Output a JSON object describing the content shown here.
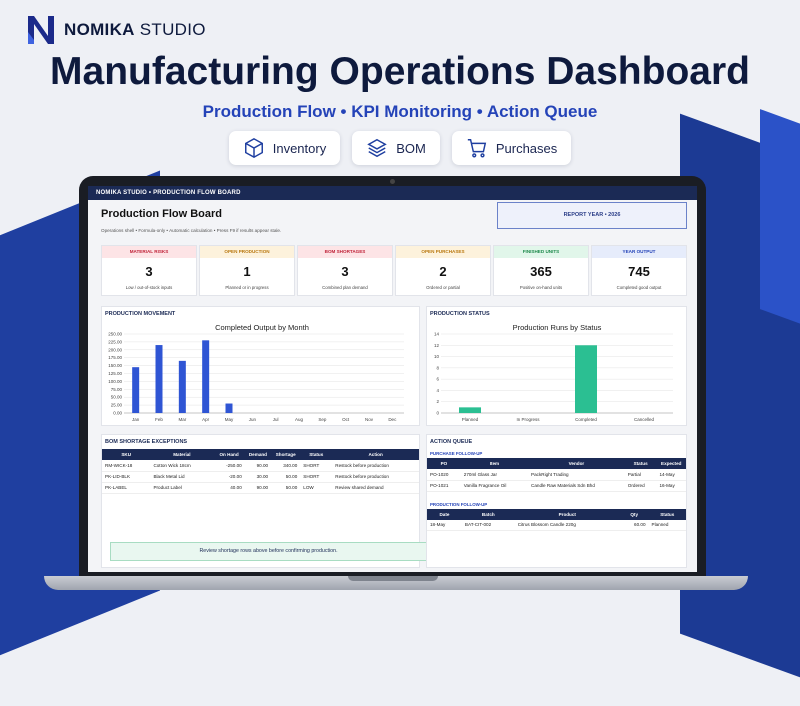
{
  "brand": {
    "name_bold": "NOMIKA",
    "name_rest": " STUDIO"
  },
  "hero": {
    "title": "Manufacturing Operations Dashboard",
    "subtitle": "Production Flow • KPI Monitoring • Action Queue"
  },
  "pills": [
    {
      "label": "Inventory",
      "icon": "box-icon"
    },
    {
      "label": "BOM",
      "icon": "layers-icon"
    },
    {
      "label": "Purchases",
      "icon": "cart-icon"
    }
  ],
  "screen": {
    "topbar": "NOMIKA STUDIO  •  PRODUCTION FLOW BOARD",
    "board_title": "Production Flow Board",
    "board_note": "Operations shell • Formula-only • Automatic calculation • Press F9 if results appear stale.",
    "report_year": "REPORT YEAR  •  2026"
  },
  "kpis": [
    {
      "header": "MATERIAL RISKS",
      "value": "3",
      "sub": "Low / out-of-stock inputs",
      "bg": "#fde4e6",
      "fg": "#c0243a"
    },
    {
      "header": "OPEN PRODUCTION",
      "value": "1",
      "sub": "Planned or in progress",
      "bg": "#fdf2dc",
      "fg": "#b9780f"
    },
    {
      "header": "BOM SHORTAGES",
      "value": "3",
      "sub": "Combined plan demand",
      "bg": "#fde4e6",
      "fg": "#c0243a"
    },
    {
      "header": "OPEN PURCHASES",
      "value": "2",
      "sub": "Ordered or partial",
      "bg": "#fdf2dc",
      "fg": "#b9780f"
    },
    {
      "header": "FINISHED UNITS",
      "value": "365",
      "sub": "Positive on-hand units",
      "bg": "#e1f6ea",
      "fg": "#1f8a4c"
    },
    {
      "header": "YEAR OUTPUT",
      "value": "745",
      "sub": "Completed good output",
      "bg": "#e6ecfb",
      "fg": "#2443b8"
    }
  ],
  "movement": {
    "panel_title": "PRODUCTION MOVEMENT",
    "chart_data": {
      "type": "bar",
      "title": "Completed Output by Month",
      "categories": [
        "Jan",
        "Feb",
        "Mar",
        "Apr",
        "May",
        "Jun",
        "Jul",
        "Aug",
        "Sep",
        "Oct",
        "Nov",
        "Dec"
      ],
      "values": [
        145,
        215,
        165,
        230,
        30,
        0,
        0,
        0,
        0,
        0,
        0,
        0
      ],
      "yticks": [
        "0.00",
        "25.00",
        "50.00",
        "75.00",
        "100.00",
        "125.00",
        "150.00",
        "175.00",
        "200.00",
        "225.00",
        "250.00"
      ],
      "ylim": [
        0,
        250
      ],
      "color": "#2f55d4"
    }
  },
  "status": {
    "panel_title": "PRODUCTION STATUS",
    "chart_data": {
      "type": "bar",
      "title": "Production Runs by Status",
      "categories": [
        "Planned",
        "In Progress",
        "Completed",
        "Cancelled"
      ],
      "values": [
        1,
        0,
        12,
        0
      ],
      "yticks": [
        "0",
        "2",
        "4",
        "6",
        "8",
        "10",
        "12",
        "14"
      ],
      "ylim": [
        0,
        14
      ],
      "color": "#2bbf92"
    }
  },
  "bom": {
    "panel_title": "BOM SHORTAGE EXCEPTIONS",
    "headers": [
      "SKU",
      "Material",
      "On Hand",
      "Demand",
      "Shortage",
      "Status",
      "Action"
    ],
    "rows": [
      [
        "RM-WICK-18",
        "Cotton Wick 18cm",
        "-250.00",
        "90.00",
        "340.00",
        "SHORT",
        "Restock before production"
      ],
      [
        "PK-LID-BLK",
        "Black Metal Lid",
        "-20.00",
        "30.00",
        "50.00",
        "SHORT",
        "Restock before production"
      ],
      [
        "PK-LABEL",
        "Product Label",
        "40.00",
        "90.00",
        "50.00",
        "LOW",
        "Review shared demand"
      ]
    ],
    "notice": "Review shortage rows above before confirming production."
  },
  "queue": {
    "panel_title": "ACTION QUEUE",
    "purchase_label": "PURCHASE FOLLOW-UP",
    "purchase_headers": [
      "PO",
      "Item",
      "Vendor",
      "Status",
      "Expected"
    ],
    "purchase_rows": [
      [
        "PO-1020",
        "270ml Glass Jar",
        "PackRight Trading",
        "Partial",
        "14-May"
      ],
      [
        "PO-1021",
        "Vanilla Fragrance Oil",
        "Candle Raw Materials Sdn Bhd",
        "Ordered",
        "16-May"
      ]
    ],
    "production_label": "PRODUCTION FOLLOW-UP",
    "production_headers": [
      "Date",
      "Batch",
      "Product",
      "Qty",
      "Status"
    ],
    "production_rows": [
      [
        "18-May",
        "BAT-CIT-002",
        "Citrus Blossom Candle 220g",
        "60.00",
        "Planned"
      ]
    ]
  }
}
